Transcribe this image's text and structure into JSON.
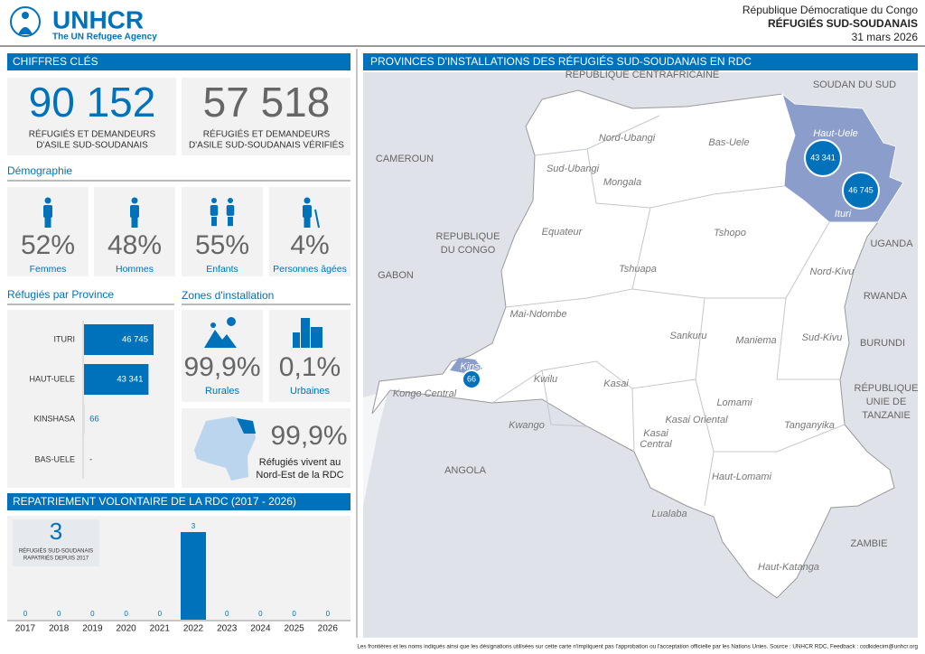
{
  "header": {
    "logo": "UNHCR",
    "tagline": "The UN Refugee Agency",
    "country": "République Démocratique du Congo",
    "title": "RÉFUGIÉS SUD-SOUDANAIS",
    "date": "31 mars 2026"
  },
  "key_figures": {
    "title": "CHIFFRES CLÉS",
    "items": [
      {
        "value": "90 152",
        "label": [
          "RÉFUGIÉS ET DEMANDEURS",
          "D'ASILE SUD-SOUDANAIS"
        ]
      },
      {
        "value": "57 518",
        "label": [
          "RÉFUGIÉS ET DEMANDEURS",
          "D'ASILE SUD-SOUDANAIS VÉRIFIÉS"
        ]
      }
    ]
  },
  "demography": {
    "title": "Démographie",
    "items": [
      {
        "value": "52%",
        "label": "Femmes"
      },
      {
        "value": "48%",
        "label": "Hommes"
      },
      {
        "value": "55%",
        "label": "Enfants"
      },
      {
        "value": "4%",
        "label": "Personnes âgées"
      }
    ]
  },
  "provinces": {
    "title": "Réfugiés par Province",
    "type": "bar",
    "categories": [
      "ITURI",
      "HAUT-UELE",
      "KINSHASA",
      "BAS-UELE"
    ],
    "values": [
      46745,
      43341,
      66,
      null
    ],
    "value_labels": [
      "46 745",
      "43 341",
      "66",
      "-"
    ],
    "color": "#0072bc"
  },
  "zones": {
    "title": "Zones d'installation",
    "items": [
      {
        "value": "99,9%",
        "label": "Rurales"
      },
      {
        "value": "0,1%",
        "label": "Urbaines"
      }
    ],
    "north_east": {
      "value": "99,9%",
      "label": [
        "Réfugiés vivent au",
        "Nord-Est de la RDC"
      ]
    }
  },
  "repatriation": {
    "title": "REPATRIEMENT VOLONTAIRE DE LA RDC (2017 - 2026)",
    "total": {
      "value": "3",
      "label": [
        "RÉFUGIÉS SUD-SOUDANAIS",
        "RAPATRIÉS DEPUIS 2017"
      ]
    },
    "type": "bar",
    "categories": [
      "2017",
      "2018",
      "2019",
      "2020",
      "2021",
      "2022",
      "2023",
      "2024",
      "2025",
      "2026"
    ],
    "values": [
      0,
      0,
      0,
      0,
      0,
      3,
      0,
      0,
      0,
      0
    ],
    "color": "#0072bc"
  },
  "map": {
    "title": "PROVINCES D'INSTALLATIONS DES RÉFUGIÉS SUD-SOUDANAIS EN RDC",
    "countries": [
      [
        "RÉPUBLIQUE CENTRAFRICAINE"
      ],
      [
        "SOUDAN DU SUD"
      ],
      [
        "CAMEROUN"
      ],
      [
        "REPUBLIQUE",
        "DU CONGO"
      ],
      [
        "GABON"
      ],
      [
        "UGANDA"
      ],
      [
        "RWANDA"
      ],
      [
        "BURUNDI"
      ],
      [
        "RÉPUBLIQUE",
        "UNIE DE",
        "TANZANIE"
      ],
      [
        "ANGOLA"
      ],
      [
        "ZAMBIE"
      ]
    ],
    "provinces": [
      [
        "Nord-Ubangi"
      ],
      [
        "Bas-Uele"
      ],
      [
        "Sud-Ubangi"
      ],
      [
        "Mongala"
      ],
      [
        "Haut-Uele"
      ],
      [
        "Ituri"
      ],
      [
        "Equateur"
      ],
      [
        "Tshopo"
      ],
      [
        "Tshuapa"
      ],
      [
        "Nord-Kivu"
      ],
      [
        "Mai-Ndombe"
      ],
      [
        "Sankuru"
      ],
      [
        "Maniema"
      ],
      [
        "Sud-Kivu"
      ],
      [
        "Kinshasa"
      ],
      [
        "Kwilu"
      ],
      [
        "Kasai"
      ],
      [
        "Kongo Central"
      ],
      [
        "Lomami"
      ],
      [
        "Kasai Oriental"
      ],
      [
        "Kwango"
      ],
      [
        "Kasai",
        "Central"
      ],
      [
        "Tanganyika"
      ],
      [
        "Haut-Lomami"
      ],
      [
        "Lualaba"
      ],
      [
        "Haut-Katanga"
      ]
    ],
    "bubbles": [
      "43 341",
      "46 745",
      "66"
    ]
  },
  "footer": "Les frontières et les noms indiqués ainsi que les désignations utilisées sur cette carte n'impliquent pas l'approbation ou l'acceptation officielle par les Nations Unies. Source : UNHCR RDC, Feedback : codkidecim@unhcr.org"
}
